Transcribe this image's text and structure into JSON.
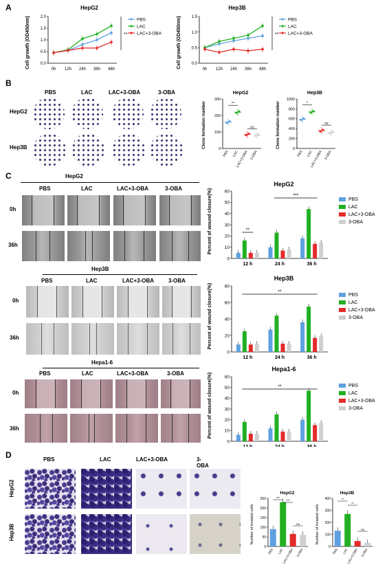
{
  "panel_letters": {
    "a": "A",
    "b": "B",
    "c": "C",
    "d": "D"
  },
  "colors": {
    "pbs": "#5ea0e0",
    "lac": "#22b022",
    "lac_oba": "#e52a2a",
    "oba": "#cfcfcf",
    "text": "#000000"
  },
  "growth": {
    "hepg2_title": "HepG2",
    "hep3b_title": "Hep3B",
    "ylabel": "Cell growth (OD450nm)",
    "sig": "**",
    "legend": [
      "PBS",
      "LAC",
      "LAC+3-OBA"
    ]
  },
  "colony": {
    "rows": [
      "HepG2",
      "Hep3B"
    ],
    "cols": [
      "PBS",
      "LAC",
      "LAC+3-OBA",
      "3-OBA"
    ],
    "hepg2_title": "HepG2",
    "hep3b_title": "Hep3B",
    "ylabel": "Clone formation number",
    "xcats": [
      "PBS",
      "LAC",
      "LAC+3-OBA",
      "3-OBA"
    ],
    "sig_hepg2": "**",
    "sig_hep3b": "*",
    "ns": "ns"
  },
  "wound": {
    "cols": [
      "PBS",
      "LAC",
      "LAC+3-OBA",
      "3-OBA"
    ],
    "times": [
      "0h",
      "36h"
    ],
    "groups": [
      "HepG2",
      "Hep3B",
      "Hepa1-6"
    ],
    "ylabel": "Percent of wound closure(%)",
    "xcats": [
      "12 h",
      "24 h",
      "36 h"
    ],
    "legend": [
      "PBS",
      "LAC",
      "LAC+3-OBA",
      "3-OBA"
    ],
    "sig_hepg2_a": "**",
    "sig_hepg2_b": "***",
    "sig_hep3b": "**",
    "sig_hepa": "**"
  },
  "invasion": {
    "cols": [
      "PBS",
      "LAC",
      "LAC+3-OBA",
      "3-OBA"
    ],
    "rows": [
      "HepG2",
      "Hep3B"
    ],
    "hepg2_title": "HepG2",
    "hep3b_title": "Hep3B",
    "ylabel": "Number of invaded cells",
    "xcats": [
      "PBS",
      "LAC",
      "LAC+3-OBA",
      "3-OBA"
    ],
    "sig_a": "***",
    "sig_b": "***",
    "sig_c": "**",
    "sig_d": "**",
    "ns": "ns"
  },
  "chart_data": [
    {
      "type": "line",
      "title": "HepG2",
      "ylabel": "Cell growth (OD450nm)",
      "xlabel": "",
      "x": [
        "0h",
        "12h",
        "24h",
        "36h",
        "48h"
      ],
      "ylim": [
        0,
        2.0
      ],
      "yticks": [
        0,
        0.5,
        1.0,
        1.5,
        2.0
      ],
      "series": [
        {
          "name": "PBS",
          "values": [
            0.45,
            0.55,
            0.8,
            1.0,
            1.3
          ]
        },
        {
          "name": "LAC",
          "values": [
            0.45,
            0.58,
            1.05,
            1.25,
            1.6
          ]
        },
        {
          "name": "LAC+3-OBA",
          "values": [
            0.45,
            0.55,
            0.65,
            0.65,
            0.9
          ]
        }
      ]
    },
    {
      "type": "line",
      "title": "Hep3B",
      "ylabel": "Cell growth (OD450nm)",
      "xlabel": "",
      "x": [
        "0h",
        "12h",
        "24h",
        "36h",
        "48h"
      ],
      "ylim": [
        0,
        1.5
      ],
      "yticks": [
        0,
        0.5,
        1.0,
        1.5
      ],
      "series": [
        {
          "name": "PBS",
          "values": [
            0.5,
            0.62,
            0.72,
            0.8,
            0.88
          ]
        },
        {
          "name": "LAC",
          "values": [
            0.5,
            0.7,
            0.8,
            0.9,
            1.2
          ]
        },
        {
          "name": "LAC+3-OBA",
          "values": [
            0.45,
            0.35,
            0.45,
            0.4,
            0.45
          ]
        }
      ]
    },
    {
      "type": "scatter",
      "title": "HepG2",
      "ylabel": "Clone formation number",
      "categories": [
        "PBS",
        "LAC",
        "LAC+3-OBA",
        "3-OBA"
      ],
      "ylim": [
        0,
        300
      ],
      "yticks": [
        0,
        100,
        200,
        300
      ],
      "values": [
        160,
        220,
        85,
        80
      ]
    },
    {
      "type": "scatter",
      "title": "Hep3B",
      "ylabel": "Clone formation number",
      "categories": [
        "PBS",
        "LAC",
        "LAC+3-OBA",
        "3-OBA"
      ],
      "ylim": [
        0,
        1000
      ],
      "yticks": [
        0,
        200,
        400,
        600,
        800,
        1000
      ],
      "values": [
        590,
        740,
        360,
        320
      ]
    },
    {
      "type": "bar",
      "title": "HepG2",
      "ylabel": "Percent of wound closure(%)",
      "categories": [
        "12 h",
        "24 h",
        "36 h"
      ],
      "ylim": [
        0,
        60
      ],
      "yticks": [
        0,
        10,
        20,
        30,
        40,
        50,
        60
      ],
      "series": [
        {
          "name": "PBS",
          "values": [
            5,
            10,
            18
          ]
        },
        {
          "name": "LAC",
          "values": [
            16,
            23,
            44
          ]
        },
        {
          "name": "LAC+3-OBA",
          "values": [
            5,
            7,
            13
          ]
        },
        {
          "name": "3-OBA",
          "values": [
            5,
            8,
            14
          ]
        }
      ]
    },
    {
      "type": "bar",
      "title": "Hep3B",
      "ylabel": "Percent of wound closure(%)",
      "categories": [
        "12 h",
        "24 h",
        "36 h"
      ],
      "ylim": [
        0,
        80
      ],
      "yticks": [
        0,
        20,
        40,
        60,
        80
      ],
      "series": [
        {
          "name": "PBS",
          "values": [
            9,
            27,
            36
          ]
        },
        {
          "name": "LAC",
          "values": [
            25,
            44,
            55
          ]
        },
        {
          "name": "LAC+3-OBA",
          "values": [
            9,
            10,
            17
          ]
        },
        {
          "name": "3-OBA",
          "values": [
            10,
            10,
            19
          ]
        }
      ]
    },
    {
      "type": "bar",
      "title": "Hepa1-6",
      "ylabel": "Percent of wound closure(%)",
      "categories": [
        "12 h",
        "24 h",
        "36 h"
      ],
      "ylim": [
        0,
        60
      ],
      "yticks": [
        0,
        10,
        20,
        30,
        40,
        50,
        60
      ],
      "series": [
        {
          "name": "PBS",
          "values": [
            6,
            12,
            20
          ]
        },
        {
          "name": "LAC",
          "values": [
            18,
            25,
            47
          ]
        },
        {
          "name": "LAC+3-OBA",
          "values": [
            7,
            9,
            15
          ]
        },
        {
          "name": "3-OBA",
          "values": [
            7,
            9,
            17
          ]
        }
      ]
    },
    {
      "type": "bar",
      "title": "HepG2",
      "ylabel": "Number of invaded cells",
      "categories": [
        "PBS",
        "LAC",
        "LAC+3-OBA",
        "3-OBA"
      ],
      "ylim": [
        0,
        250
      ],
      "yticks": [
        0,
        50,
        100,
        150,
        200,
        250
      ],
      "values": [
        90,
        230,
        65,
        60
      ]
    },
    {
      "type": "bar",
      "title": "Hep3B",
      "ylabel": "Number of invaded cells",
      "categories": [
        "PBS",
        "LAC",
        "LAC+3-OBA",
        "3-OBA"
      ],
      "ylim": [
        0,
        400
      ],
      "yticks": [
        0,
        100,
        200,
        300,
        400
      ],
      "values": [
        130,
        270,
        45,
        30
      ]
    }
  ]
}
